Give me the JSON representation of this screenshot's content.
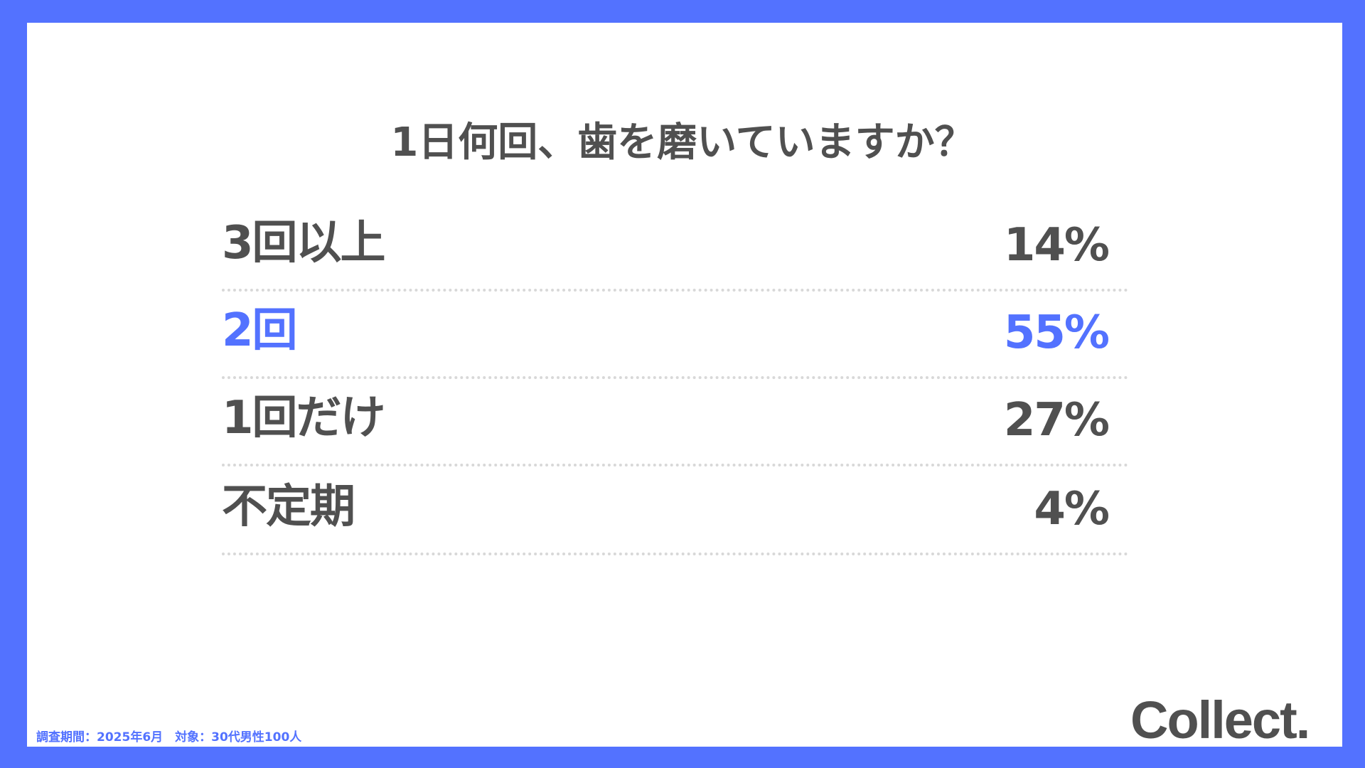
{
  "title": "1日何回、歯を磨いていますか？",
  "accent_color": "#5372ff",
  "rows": [
    {
      "label": "3回以上",
      "value": "14%",
      "highlight": false
    },
    {
      "label": "2回",
      "value": "55%",
      "highlight": true
    },
    {
      "label": "1回だけ",
      "value": "27%",
      "highlight": false
    },
    {
      "label": "不定期",
      "value": "4%",
      "highlight": false
    }
  ],
  "footnote": "調査期間：2025年6月　対象：30代男性100人",
  "logo": "Collect."
}
